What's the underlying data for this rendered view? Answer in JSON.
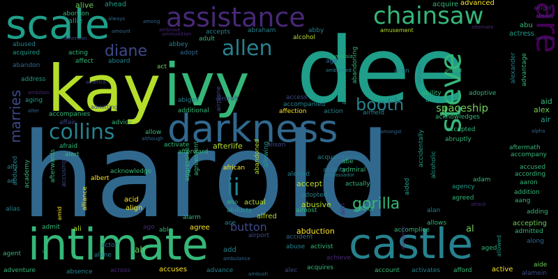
{
  "palette": {
    "background": "#000000",
    "lime": "#b5de2b",
    "green": "#6ece58",
    "teal_green": "#35b779",
    "teal": "#1f9e89",
    "teal_blue": "#26828e",
    "blue": "#31688e",
    "indigo": "#3e4989",
    "purple": "#482878",
    "dark_purple": "#440154",
    "yellow": "#fde725"
  },
  "words": [
    {
      "text": "harold",
      "color": "#31688e"
    },
    {
      "text": "dee",
      "color": "#1f9e89"
    },
    {
      "text": "kay",
      "color": "#b5de2b"
    },
    {
      "text": "intimate",
      "color": "#35b779"
    },
    {
      "text": "castle",
      "color": "#26828e"
    },
    {
      "text": "ivy",
      "color": "#35b779"
    },
    {
      "text": "scale",
      "color": "#1f9e89"
    },
    {
      "text": "darkness",
      "color": "#31688e"
    },
    {
      "text": "assistance",
      "color": "#482878"
    },
    {
      "text": "chainsaw",
      "color": "#35b779"
    },
    {
      "text": "square",
      "color": "#440154"
    },
    {
      "text": "steve",
      "color": "#35b779"
    },
    {
      "text": "collins",
      "color": "#26828e"
    },
    {
      "text": "allen",
      "color": "#26828e"
    },
    {
      "text": "diane",
      "color": "#3e4989"
    },
    {
      "text": "ii",
      "color": "#26828e"
    },
    {
      "text": "marries",
      "color": "#3e4989"
    },
    {
      "text": "booth",
      "color": "#26828e"
    },
    {
      "text": "gorilla",
      "color": "#35b779"
    },
    {
      "text": "spaceship",
      "color": "#6ece58"
    },
    {
      "text": "button",
      "color": "#3e4989"
    },
    {
      "text": "abduction",
      "color": "#fde725"
    },
    {
      "text": "alive",
      "color": "#6ece58"
    },
    {
      "text": "ahead",
      "color": "#1f9e89"
    },
    {
      "text": "acquire",
      "color": "#35b779"
    },
    {
      "text": "advanced",
      "color": "#fde725"
    },
    {
      "text": "alright",
      "color": "#482878"
    },
    {
      "text": "allie",
      "color": "#1f9e89"
    },
    {
      "text": "always",
      "color": "#31688e"
    },
    {
      "text": "amount",
      "color": "#31688e"
    },
    {
      "text": "among",
      "color": "#31688e"
    },
    {
      "text": "american",
      "color": "#3e4989"
    },
    {
      "text": "abortion",
      "color": "#35b779"
    },
    {
      "text": "abraham",
      "color": "#26828e"
    },
    {
      "text": "abby",
      "color": "#26828e"
    },
    {
      "text": "alcohol",
      "color": "#b5de2b"
    },
    {
      "text": "accepts",
      "color": "#26828e"
    },
    {
      "text": "ammunition",
      "color": "#482878"
    },
    {
      "text": "ambrose",
      "color": "#482878"
    },
    {
      "text": "amusement",
      "color": "#b5de2b"
    },
    {
      "text": "alternate",
      "color": "#482878"
    },
    {
      "text": "abu",
      "color": "#35b779"
    },
    {
      "text": "actress",
      "color": "#1f9e89"
    },
    {
      "text": "amends",
      "color": "#482878"
    },
    {
      "text": "abused",
      "color": "#26828e"
    },
    {
      "text": "abbey",
      "color": "#26828e"
    },
    {
      "text": "adult",
      "color": "#35b779"
    },
    {
      "text": "adopt",
      "color": "#31688e"
    },
    {
      "text": "acquired",
      "color": "#1f9e89"
    },
    {
      "text": "acting",
      "color": "#35b779"
    },
    {
      "text": "affect",
      "color": "#35b779"
    },
    {
      "text": "abandon",
      "color": "#31688e"
    },
    {
      "text": "aboard",
      "color": "#26828e"
    },
    {
      "text": "act",
      "color": "#6ece58"
    },
    {
      "text": "amnesia",
      "color": "#35b779"
    },
    {
      "text": "age",
      "color": "#31688e"
    },
    {
      "text": "ambushed",
      "color": "#26828e"
    },
    {
      "text": "abandoning",
      "color": "#35b779"
    },
    {
      "text": "alien",
      "color": "#26828e"
    },
    {
      "text": "amulet",
      "color": "#35b779"
    },
    {
      "text": "ability",
      "color": "#35b779"
    },
    {
      "text": "adoptive",
      "color": "#35b779"
    },
    {
      "text": "advantage",
      "color": "#35b779"
    },
    {
      "text": "address",
      "color": "#1f9e89"
    },
    {
      "text": "ambition",
      "color": "#482878"
    },
    {
      "text": "america",
      "color": "#3e4989"
    },
    {
      "text": "airplane",
      "color": "#3e4989"
    },
    {
      "text": "activated",
      "color": "#1f9e89"
    },
    {
      "text": "allison",
      "color": "#26828e"
    },
    {
      "text": "aging",
      "color": "#1f9e89"
    },
    {
      "text": "alter",
      "color": "#31688e"
    },
    {
      "text": "abigail",
      "color": "#26828e"
    },
    {
      "text": "aircraft",
      "color": "#3e4989"
    },
    {
      "text": "access",
      "color": "#3e4989"
    },
    {
      "text": "accompanied",
      "color": "#26828e"
    },
    {
      "text": "advises",
      "color": "#1f9e89"
    },
    {
      "text": "alley",
      "color": "#1f9e89"
    },
    {
      "text": "aid",
      "color": "#35b779"
    },
    {
      "text": "alexander",
      "color": "#26828e"
    },
    {
      "text": "alex",
      "color": "#6ece58"
    },
    {
      "text": "air",
      "color": "#1f9e89"
    },
    {
      "text": "admitting",
      "color": "#3e4989"
    },
    {
      "text": "accompanies",
      "color": "#35b779"
    },
    {
      "text": "additional",
      "color": "#35b779"
    },
    {
      "text": "affection",
      "color": "#fde725"
    },
    {
      "text": "action",
      "color": "#26828e"
    },
    {
      "text": "airfield",
      "color": "#26828e"
    },
    {
      "text": "acknowledges",
      "color": "#35b779"
    },
    {
      "text": "affair",
      "color": "#3e4989"
    },
    {
      "text": "advice",
      "color": "#35b779"
    },
    {
      "text": "although",
      "color": "#31688e"
    },
    {
      "text": "allow",
      "color": "#35b779"
    },
    {
      "text": "alpha",
      "color": "#31688e"
    },
    {
      "text": "accepted",
      "color": "#35b779"
    },
    {
      "text": "afterlife",
      "color": "#b5de2b"
    },
    {
      "text": "activate",
      "color": "#35b779"
    },
    {
      "text": "alison",
      "color": "#3e4989"
    },
    {
      "text": "abruptly",
      "color": "#35b779"
    },
    {
      "text": "amongst",
      "color": "#31688e"
    },
    {
      "text": "aftermath",
      "color": "#35b779"
    },
    {
      "text": "afraid",
      "color": "#35b779"
    },
    {
      "text": "acquaintance",
      "color": "#26828e"
    },
    {
      "text": "accompany",
      "color": "#35b779"
    },
    {
      "text": "alert",
      "color": "#35b779"
    },
    {
      "text": "afterward",
      "color": "#35b779"
    },
    {
      "text": "agreement",
      "color": "#35b779"
    },
    {
      "text": "activity",
      "color": "#26828e"
    },
    {
      "text": "accidentally",
      "color": "#1f9e89"
    },
    {
      "text": "accused",
      "color": "#35b779"
    },
    {
      "text": "ally",
      "color": "#26828e"
    },
    {
      "text": "acknowledge",
      "color": "#35b779"
    },
    {
      "text": "aggressive",
      "color": "#35b779"
    },
    {
      "text": "african",
      "color": "#fde725"
    },
    {
      "text": "abandoned",
      "color": "#b5de2b"
    },
    {
      "text": "admiral",
      "color": "#35b779"
    },
    {
      "text": "abe",
      "color": "#35b779"
    },
    {
      "text": "alcoholic",
      "color": "#1f9e89"
    },
    {
      "text": "according",
      "color": "#35b779"
    },
    {
      "text": "aaron",
      "color": "#35b779"
    },
    {
      "text": "ad",
      "color": "#26828e"
    },
    {
      "text": "albert",
      "color": "#fde725"
    },
    {
      "text": "allowing",
      "color": "#1f9e89"
    },
    {
      "text": "alerted",
      "color": "#26828e"
    },
    {
      "text": "ambassador",
      "color": "#26828e"
    },
    {
      "text": "adam",
      "color": "#35b779"
    },
    {
      "text": "abducted",
      "color": "#26828e"
    },
    {
      "text": "afterwards",
      "color": "#35b779"
    },
    {
      "text": "accept",
      "color": "#b5de2b"
    },
    {
      "text": "actually",
      "color": "#35b779"
    },
    {
      "text": "agency",
      "color": "#1f9e89"
    },
    {
      "text": "addition",
      "color": "#35b779"
    },
    {
      "text": "academy",
      "color": "#35b779"
    },
    {
      "text": "accusing",
      "color": "#3e4989"
    },
    {
      "text": "acid",
      "color": "#fde725"
    },
    {
      "text": "adopted",
      "color": "#26828e"
    },
    {
      "text": "abusive",
      "color": "#b5de2b"
    },
    {
      "text": "aang",
      "color": "#35b779"
    },
    {
      "text": "aided",
      "color": "#1f9e89"
    },
    {
      "text": "agreed",
      "color": "#35b779"
    },
    {
      "text": "alias",
      "color": "#26828e"
    },
    {
      "text": "align",
      "color": "#fde725"
    },
    {
      "text": "alliance",
      "color": "#fde725"
    },
    {
      "text": "also",
      "color": "#35b779"
    },
    {
      "text": "actual",
      "color": "#b5de2b"
    },
    {
      "text": "almost",
      "color": "#35b779"
    },
    {
      "text": "addict",
      "color": "#35b779"
    },
    {
      "text": "aim",
      "color": "#482878"
    },
    {
      "text": "alan",
      "color": "#26828e"
    },
    {
      "text": "alarm",
      "color": "#35b779"
    },
    {
      "text": "abducts",
      "color": "#1f9e89"
    },
    {
      "text": "alfred",
      "color": "#b5de2b"
    },
    {
      "text": "attack",
      "color": "#482878"
    },
    {
      "text": "adding",
      "color": "#35b779"
    },
    {
      "text": "admit",
      "color": "#35b779"
    },
    {
      "text": "ali",
      "color": "#b5de2b"
    },
    {
      "text": "amid",
      "color": "#fde725"
    },
    {
      "text": "ago",
      "color": "#482878"
    },
    {
      "text": "able",
      "color": "#35b779"
    },
    {
      "text": "agree",
      "color": "#fde725"
    },
    {
      "text": "ace",
      "color": "#26828e"
    },
    {
      "text": "abduction_dup",
      "color": "#fde725"
    },
    {
      "text": "accomplice",
      "color": "#35b779"
    },
    {
      "text": "allows",
      "color": "#35b779"
    },
    {
      "text": "al",
      "color": "#6ece58"
    },
    {
      "text": "accepting",
      "color": "#6ece58"
    },
    {
      "text": "admitted",
      "color": "#35b779"
    },
    {
      "text": "agent",
      "color": "#35b779"
    },
    {
      "text": "alice",
      "color": "#35b779"
    },
    {
      "text": "actor",
      "color": "#31688e"
    },
    {
      "text": "ah",
      "color": "#6ece58"
    },
    {
      "text": "add",
      "color": "#26828e"
    },
    {
      "text": "airport",
      "color": "#3e4989"
    },
    {
      "text": "accident",
      "color": "#31688e"
    },
    {
      "text": "abuse",
      "color": "#26828e"
    },
    {
      "text": "activist",
      "color": "#35b779"
    },
    {
      "text": "aged",
      "color": "#35b779"
    },
    {
      "text": "allowed",
      "color": "#1f9e89"
    },
    {
      "text": "along",
      "color": "#31688e"
    },
    {
      "text": "alone",
      "color": "#26828e"
    },
    {
      "text": "achieve",
      "color": "#482878"
    },
    {
      "text": "adventure",
      "color": "#35b779"
    },
    {
      "text": "absence",
      "color": "#26828e"
    },
    {
      "text": "across",
      "color": "#482878"
    },
    {
      "text": "accuses",
      "color": "#fde725"
    },
    {
      "text": "advance",
      "color": "#26828e"
    },
    {
      "text": "alec",
      "color": "#3e4989"
    },
    {
      "text": "ambulance",
      "color": "#31688e"
    },
    {
      "text": "ambush",
      "color": "#31688e"
    },
    {
      "text": "acquires",
      "color": "#35b779"
    },
    {
      "text": "account",
      "color": "#35b779"
    },
    {
      "text": "activates",
      "color": "#26828e"
    },
    {
      "text": "afford",
      "color": "#35b779"
    },
    {
      "text": "active",
      "color": "#fde725"
    },
    {
      "text": "aide",
      "color": "#6ece58"
    },
    {
      "text": "alamein",
      "color": "#3e4989"
    },
    {
      "text": "alongside",
      "color": "#482878"
    },
    {
      "text": "already",
      "color": "#482878"
    }
  ]
}
